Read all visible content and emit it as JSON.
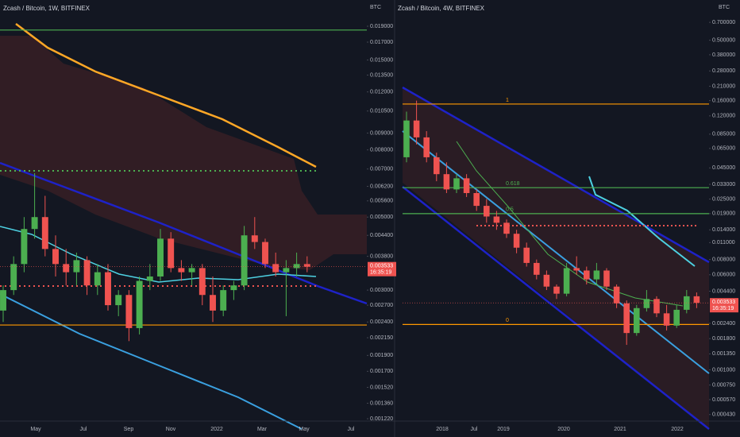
{
  "chart_data": [
    {
      "type": "candlestick",
      "title": "Zcash / Bitcoin, 1W, BITFINEX",
      "axis_unit": "BTC",
      "log_scale": true,
      "ylim": [
        0.0012,
        0.0222
      ],
      "yticks": [
        {
          "value": 0.019,
          "label": "0.019000"
        },
        {
          "value": 0.017,
          "label": "0.017000"
        },
        {
          "value": 0.015,
          "label": "0.015000"
        },
        {
          "value": 0.0135,
          "label": "0.013500"
        },
        {
          "value": 0.012,
          "label": "0.012000"
        },
        {
          "value": 0.0105,
          "label": "0.010500"
        },
        {
          "value": 0.009,
          "label": "0.009000"
        },
        {
          "value": 0.008,
          "label": "0.008000"
        },
        {
          "value": 0.007,
          "label": "0.007000"
        },
        {
          "value": 0.0062,
          "label": "0.006200"
        },
        {
          "value": 0.0056,
          "label": "0.005600"
        },
        {
          "value": 0.005,
          "label": "0.005000"
        },
        {
          "value": 0.0044,
          "label": "0.004400"
        },
        {
          "value": 0.0038,
          "label": "0.003800"
        },
        {
          "value": 0.003,
          "label": "0.003000"
        },
        {
          "value": 0.0027,
          "label": "0.002700"
        },
        {
          "value": 0.0024,
          "label": "0.002400"
        },
        {
          "value": 0.00215,
          "label": "0.002150"
        },
        {
          "value": 0.0019,
          "label": "0.001900"
        },
        {
          "value": 0.0017,
          "label": "0.001700"
        },
        {
          "value": 0.00152,
          "label": "0.001520"
        },
        {
          "value": 0.00136,
          "label": "0.001360"
        },
        {
          "value": 0.00122,
          "label": "0.001220"
        }
      ],
      "x_labels": [
        "May",
        "Jul",
        "Sep",
        "Nov",
        "2022",
        "Mar",
        "May",
        "Jul"
      ],
      "up_color": "#4caf50",
      "down_color": "#ef5350",
      "open": [
        0.0026,
        0.003,
        0.0036,
        0.0046,
        0.005,
        0.004,
        0.0036,
        0.0034,
        0.0037,
        0.0031,
        0.0034,
        0.0027,
        0.0029,
        0.0023,
        0.0032,
        0.0033,
        0.0043,
        0.0035,
        0.0034,
        0.0035,
        0.0029,
        0.0026,
        0.003,
        0.0031,
        0.0044,
        0.0042,
        0.0036,
        0.0034,
        0.0035,
        0.0036
      ],
      "high": [
        0.0031,
        0.0038,
        0.005,
        0.0068,
        0.0058,
        0.0044,
        0.004,
        0.0039,
        0.0038,
        0.0036,
        0.0036,
        0.003,
        0.003,
        0.0033,
        0.0036,
        0.0046,
        0.0045,
        0.0037,
        0.0036,
        0.0036,
        0.0033,
        0.0031,
        0.0032,
        0.0047,
        0.005,
        0.0043,
        0.0039,
        0.0037,
        0.0039,
        0.0038
      ],
      "low": [
        0.0024,
        0.0029,
        0.0034,
        0.0043,
        0.0038,
        0.0033,
        0.0031,
        0.0031,
        0.0029,
        0.0029,
        0.0026,
        0.0025,
        0.0021,
        0.0022,
        0.003,
        0.0032,
        0.0034,
        0.0032,
        0.0031,
        0.0027,
        0.0024,
        0.0025,
        0.0028,
        0.003,
        0.004,
        0.0035,
        0.0033,
        0.0025,
        0.0033,
        0.0034
      ],
      "close": [
        0.003,
        0.0036,
        0.0046,
        0.005,
        0.004,
        0.0036,
        0.0034,
        0.0037,
        0.0031,
        0.0034,
        0.0027,
        0.0029,
        0.0023,
        0.0032,
        0.0033,
        0.0043,
        0.0035,
        0.0034,
        0.0035,
        0.0029,
        0.0026,
        0.003,
        0.0031,
        0.0044,
        0.0042,
        0.0036,
        0.0034,
        0.0035,
        0.0036,
        0.003533
      ],
      "levels": [
        {
          "value": 0.0185,
          "color": "#4caf50"
        },
        {
          "value": 0.00235,
          "color": "#ff9800"
        }
      ],
      "price_tag": {
        "value": 0.003533,
        "label": "0.003533"
      },
      "countdown": "16:35:19"
    },
    {
      "type": "candlestick",
      "title": "Zcash / Bitcoin, 4W, BITFINEX",
      "axis_unit": "BTC",
      "log_scale": true,
      "ylim": [
        0.00038,
        0.99
      ],
      "yticks": [
        {
          "value": 0.7,
          "label": "0.700000"
        },
        {
          "value": 0.5,
          "label": "0.500000"
        },
        {
          "value": 0.38,
          "label": "0.380000"
        },
        {
          "value": 0.28,
          "label": "0.280000"
        },
        {
          "value": 0.21,
          "label": "0.210000"
        },
        {
          "value": 0.16,
          "label": "0.160000"
        },
        {
          "value": 0.12,
          "label": "0.120000"
        },
        {
          "value": 0.085,
          "label": "0.085000"
        },
        {
          "value": 0.065,
          "label": "0.065000"
        },
        {
          "value": 0.045,
          "label": "0.045000"
        },
        {
          "value": 0.033,
          "label": "0.033000"
        },
        {
          "value": 0.025,
          "label": "0.025000"
        },
        {
          "value": 0.019,
          "label": "0.019000"
        },
        {
          "value": 0.014,
          "label": "0.014000"
        },
        {
          "value": 0.011,
          "label": "0.011000"
        },
        {
          "value": 0.008,
          "label": "0.008000"
        },
        {
          "value": 0.006,
          "label": "0.006000"
        },
        {
          "value": 0.0044,
          "label": "0.004400"
        },
        {
          "value": 0.0024,
          "label": "0.002400"
        },
        {
          "value": 0.0018,
          "label": "0.001800"
        },
        {
          "value": 0.00135,
          "label": "0.001350"
        },
        {
          "value": 0.001,
          "label": "0.001000"
        },
        {
          "value": 0.00075,
          "label": "0.000750"
        },
        {
          "value": 0.00057,
          "label": "0.000570"
        },
        {
          "value": 0.00043,
          "label": "0.000430"
        }
      ],
      "x_labels": [
        "2018",
        "Jul",
        "2019",
        "2020",
        "2021",
        "2022"
      ],
      "up_color": "#4caf50",
      "down_color": "#ef5350",
      "open": [
        0.055,
        0.11,
        0.08,
        0.055,
        0.04,
        0.03,
        0.037,
        0.028,
        0.022,
        0.018,
        0.016,
        0.013,
        0.01,
        0.0075,
        0.006,
        0.0048,
        0.0042,
        0.0068,
        0.0065,
        0.0055,
        0.0065,
        0.0048,
        0.0035,
        0.002,
        0.0032,
        0.0038,
        0.0029,
        0.0023,
        0.0031,
        0.004
      ],
      "high": [
        0.13,
        0.16,
        0.09,
        0.06,
        0.05,
        0.04,
        0.04,
        0.03,
        0.025,
        0.02,
        0.017,
        0.014,
        0.011,
        0.008,
        0.0065,
        0.005,
        0.0075,
        0.0085,
        0.007,
        0.0075,
        0.0068,
        0.005,
        0.0037,
        0.0034,
        0.0045,
        0.004,
        0.0034,
        0.0034,
        0.0045,
        0.0043
      ],
      "low": [
        0.05,
        0.07,
        0.05,
        0.035,
        0.028,
        0.028,
        0.026,
        0.02,
        0.016,
        0.014,
        0.012,
        0.009,
        0.007,
        0.0055,
        0.0045,
        0.0038,
        0.004,
        0.006,
        0.005,
        0.005,
        0.0045,
        0.0032,
        0.0016,
        0.0019,
        0.003,
        0.0027,
        0.0021,
        0.0022,
        0.0029,
        0.0032
      ],
      "close": [
        0.11,
        0.08,
        0.055,
        0.04,
        0.03,
        0.037,
        0.028,
        0.022,
        0.018,
        0.016,
        0.013,
        0.01,
        0.0075,
        0.006,
        0.0048,
        0.0042,
        0.0068,
        0.0065,
        0.0055,
        0.0065,
        0.0048,
        0.0035,
        0.002,
        0.0032,
        0.0038,
        0.0029,
        0.0023,
        0.0031,
        0.004,
        0.003533
      ],
      "levels": [
        {
          "value": 0.15,
          "color": "#ff9800",
          "label": "1"
        },
        {
          "value": 0.031,
          "color": "#4caf50",
          "label": "0.618"
        },
        {
          "value": 0.019,
          "color": "#4caf50",
          "label": "0.5"
        },
        {
          "value": 0.00235,
          "color": "#ff9800",
          "label": "0"
        }
      ],
      "price_tag": {
        "value": 0.003533,
        "label": "0.003533"
      },
      "countdown": "16:35:19"
    }
  ]
}
